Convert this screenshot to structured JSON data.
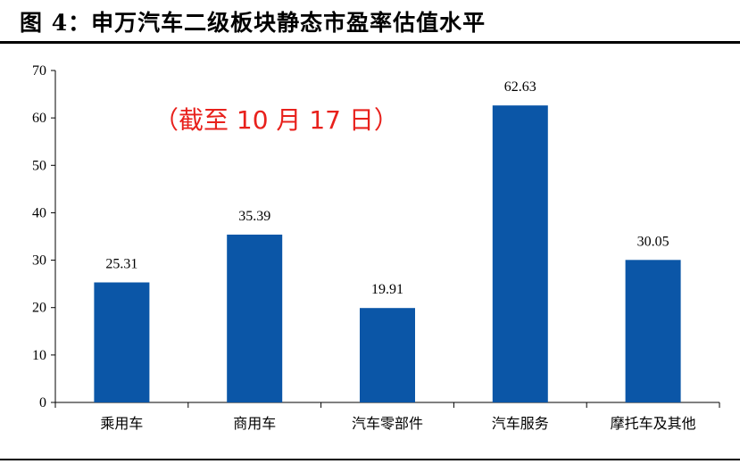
{
  "figure_title": "图 4：申万汽车二级板块静态市盈率估值水平",
  "colors": {
    "bar": "#0b56a7",
    "axis": "#000000",
    "annotation": "#e8211c"
  },
  "chart_data": {
    "type": "bar",
    "title": "",
    "annotation": "（截至 10 月 17 日）",
    "categories": [
      "乘用车",
      "商用车",
      "汽车零部件",
      "汽车服务",
      "摩托车及其他"
    ],
    "values": [
      25.31,
      35.39,
      19.91,
      62.63,
      30.05
    ],
    "data_labels": [
      "25.31",
      "35.39",
      "19.91",
      "62.63",
      "30.05"
    ],
    "ylim": [
      0,
      70
    ],
    "yticks": [
      0,
      10,
      20,
      30,
      40,
      50,
      60,
      70
    ],
    "xlabel": "",
    "ylabel": "",
    "grid": false,
    "legend": "none"
  }
}
